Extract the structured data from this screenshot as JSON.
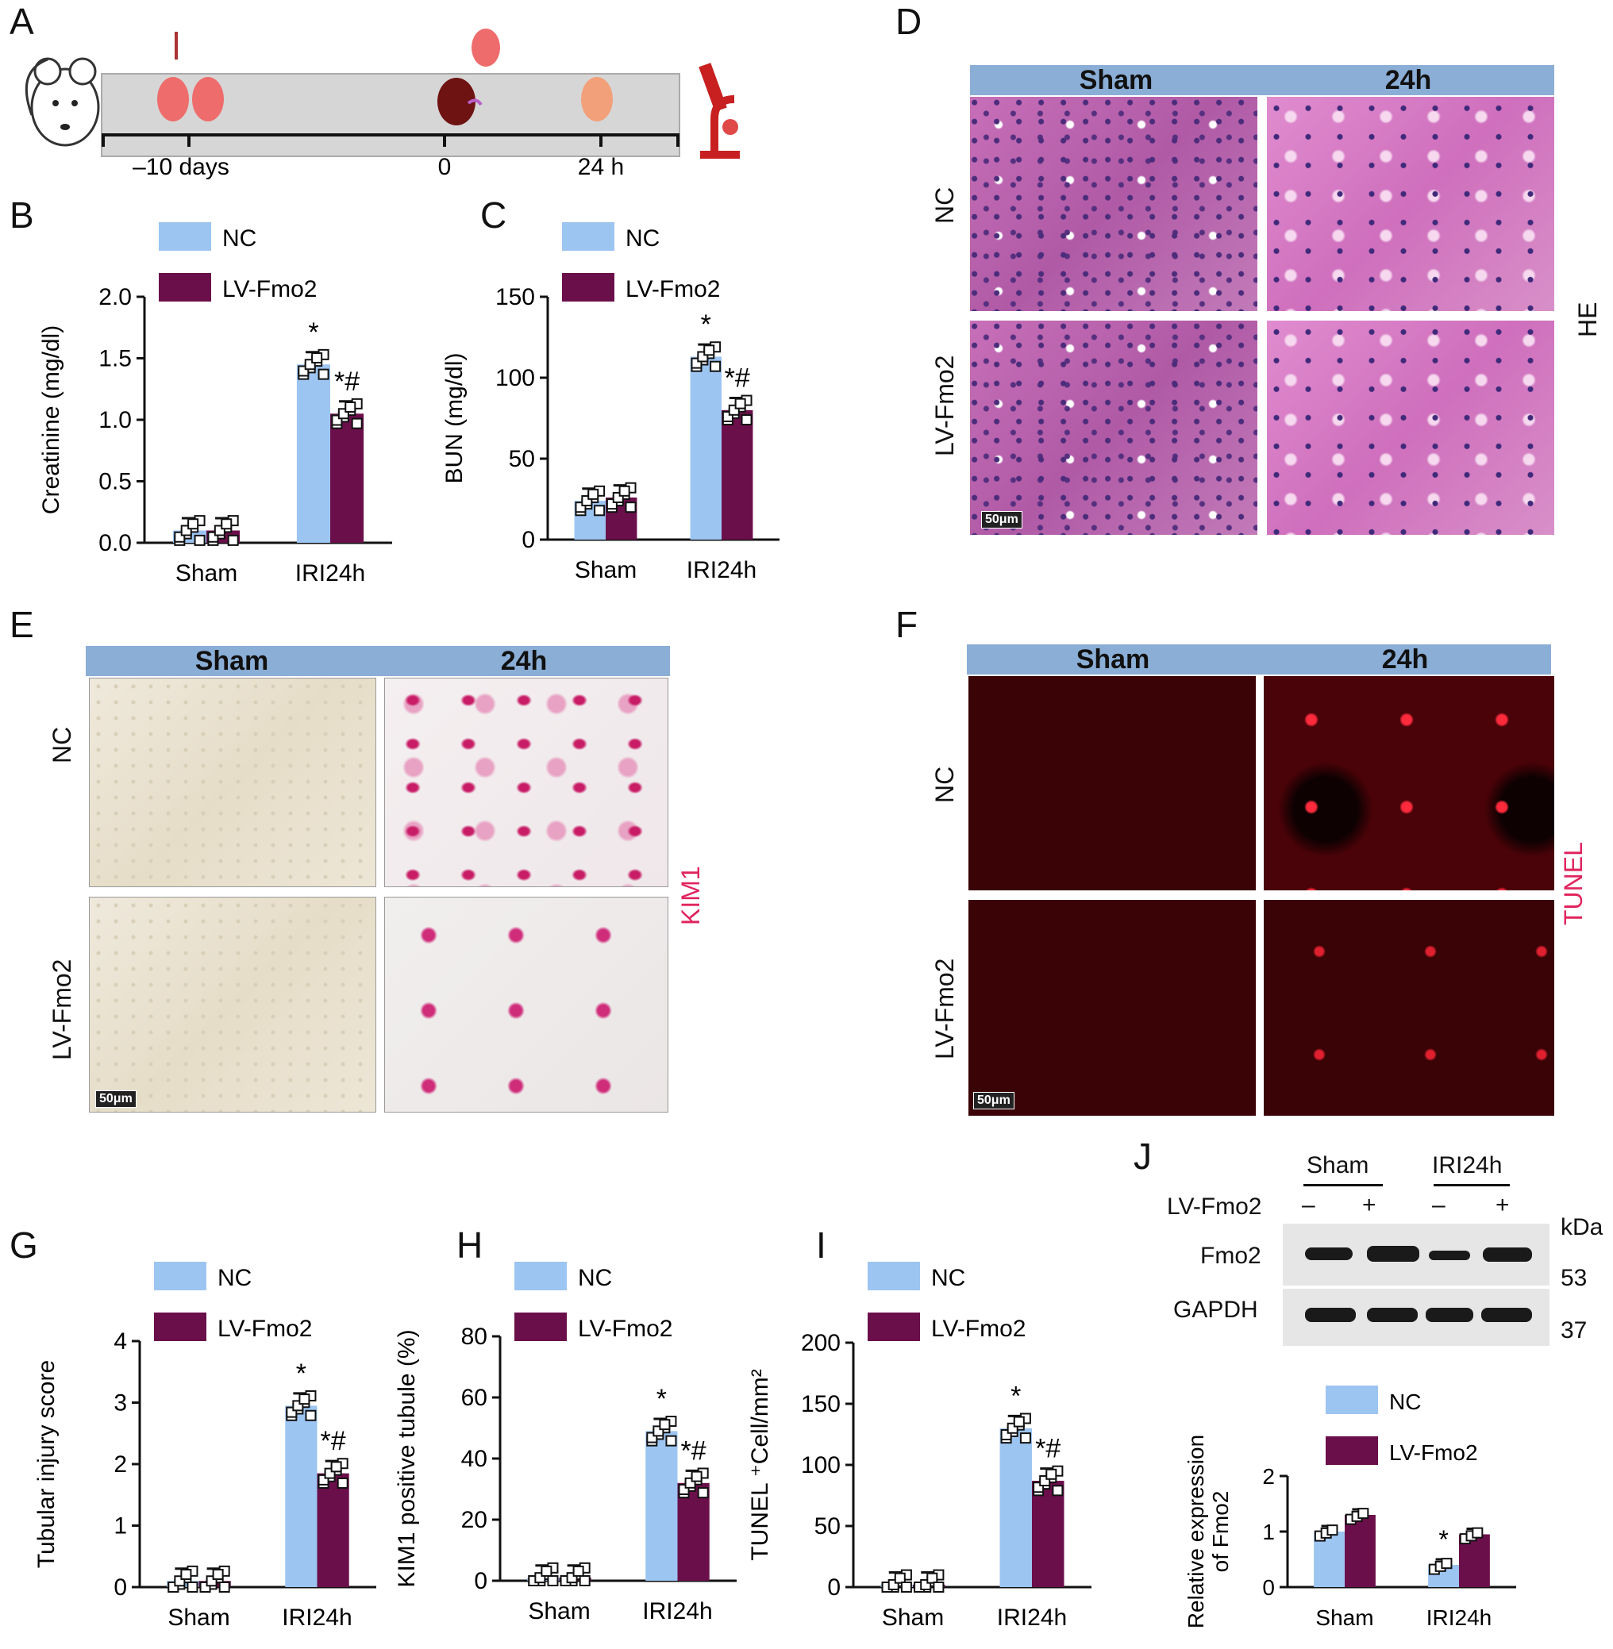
{
  "panels": {
    "A": "A",
    "B": "B",
    "C": "C",
    "D": "D",
    "E": "E",
    "F": "F",
    "G": "G",
    "H": "H",
    "I": "I",
    "J": "J"
  },
  "timeline": {
    "labels": [
      "–10 days",
      "0",
      "24 h"
    ]
  },
  "micrographs": {
    "col_headers": [
      "Sham",
      "24h"
    ],
    "row_labels": [
      "NC",
      "LV-Fmo2"
    ],
    "scale_bar": "50μm",
    "stains": {
      "D": "HE",
      "E": "KIM1",
      "F": "TUNEL"
    },
    "stain_colors": {
      "E": "#e0245e",
      "F": "#e0245e"
    }
  },
  "colors": {
    "NC": "#9cc5f2",
    "LV-Fmo2": "#6b0f4b"
  },
  "chart_data": [
    {
      "panel": "B",
      "type": "bar",
      "categories": [
        "Sham",
        "IRI24h"
      ],
      "series": [
        {
          "name": "NC",
          "values": [
            0.1,
            1.45
          ]
        },
        {
          "name": "LV-Fmo2",
          "values": [
            0.1,
            1.05
          ]
        }
      ],
      "ylabel": "Creatinine (mg/dl)",
      "ylim": [
        0,
        2.0
      ],
      "yticks": [
        "0.0",
        "0.5",
        "1.0",
        "1.5",
        "2.0"
      ],
      "annotations": [
        "*",
        "*#"
      ],
      "legend": [
        "NC",
        "LV-Fmo2"
      ]
    },
    {
      "panel": "C",
      "type": "bar",
      "categories": [
        "Sham",
        "IRI24h"
      ],
      "series": [
        {
          "name": "NC",
          "values": [
            24,
            113
          ]
        },
        {
          "name": "LV-Fmo2",
          "values": [
            26,
            80
          ]
        }
      ],
      "ylabel": "BUN (mg/dl)",
      "ylim": [
        0,
        150
      ],
      "yticks": [
        "0",
        "50",
        "100",
        "150"
      ],
      "annotations": [
        "*",
        "*#"
      ],
      "legend": [
        "NC",
        "LV-Fmo2"
      ]
    },
    {
      "panel": "G",
      "type": "bar",
      "categories": [
        "Sham",
        "IRI24h"
      ],
      "series": [
        {
          "name": "NC",
          "values": [
            0.1,
            2.95
          ]
        },
        {
          "name": "LV-Fmo2",
          "values": [
            0.1,
            1.85
          ]
        }
      ],
      "ylabel": "Tubular injury score",
      "ylim": [
        0,
        4
      ],
      "yticks": [
        "0",
        "1",
        "2",
        "3",
        "4"
      ],
      "annotations": [
        "*",
        "*#"
      ],
      "legend": [
        "NC",
        "LV-Fmo2"
      ]
    },
    {
      "panel": "H",
      "type": "bar",
      "categories": [
        "Sham",
        "IRI24h"
      ],
      "series": [
        {
          "name": "NC",
          "values": [
            1,
            49
          ]
        },
        {
          "name": "LV-Fmo2",
          "values": [
            1,
            32
          ]
        }
      ],
      "ylabel": "KIM1 positive tubule (%)",
      "ylim": [
        0,
        80
      ],
      "yticks": [
        "0",
        "20",
        "40",
        "60",
        "80"
      ],
      "annotations": [
        "*",
        "*#"
      ],
      "legend": [
        "NC",
        "LV-Fmo2"
      ]
    },
    {
      "panel": "I",
      "type": "bar",
      "categories": [
        "Sham",
        "IRI24h"
      ],
      "series": [
        {
          "name": "NC",
          "values": [
            2,
            130
          ]
        },
        {
          "name": "LV-Fmo2",
          "values": [
            2,
            87
          ]
        }
      ],
      "ylabel": "TUNEL ⁺Cell/mm²",
      "ylim": [
        0,
        200
      ],
      "yticks": [
        "0",
        "50",
        "100",
        "150",
        "200"
      ],
      "annotations": [
        "*",
        "*#"
      ],
      "legend": [
        "NC",
        "LV-Fmo2"
      ]
    },
    {
      "panel": "J",
      "type": "bar",
      "categories": [
        "Sham",
        "IRI24h"
      ],
      "series": [
        {
          "name": "NC",
          "values": [
            1.0,
            0.4
          ]
        },
        {
          "name": "LV-Fmo2",
          "values": [
            1.3,
            0.95
          ]
        }
      ],
      "ylabel": "Relative expression of Fmo2",
      "ylim": [
        0,
        2
      ],
      "yticks": [
        "0",
        "1",
        "2"
      ],
      "annotations": [
        "*"
      ],
      "legend": [
        "NC",
        "LV-Fmo2"
      ]
    }
  ],
  "blot": {
    "groups": [
      "Sham",
      "IRI24h"
    ],
    "treatment_label": "LV-Fmo2",
    "signs": [
      "–",
      "+",
      "–",
      "+"
    ],
    "unit": "kDa",
    "rows": [
      {
        "name": "Fmo2",
        "kda": "53"
      },
      {
        "name": "GAPDH",
        "kda": "37"
      }
    ]
  }
}
